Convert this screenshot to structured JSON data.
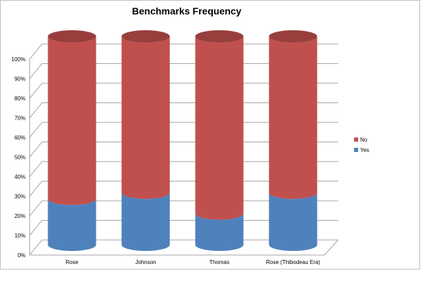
{
  "chart_data": {
    "type": "bar",
    "subtype": "stacked-100-percent-cylinder-3d",
    "title": "Benchmarks Frequency",
    "xlabel": "",
    "ylabel": "",
    "categories": [
      "Rose",
      "Johnson",
      "Thomas",
      "Rose (Thibodeau Era)"
    ],
    "y_ticks": [
      "0%",
      "10%",
      "20%",
      "30%",
      "40%",
      "50%",
      "60%",
      "70%",
      "80%",
      "90%",
      "100%"
    ],
    "ylim": [
      0,
      100
    ],
    "series": [
      {
        "name": "Yes",
        "values": [
          22,
          25,
          15,
          25
        ],
        "color": "#4f81bd",
        "color_dark": "#3a6699"
      },
      {
        "name": "No",
        "values": [
          78,
          75,
          85,
          75
        ],
        "color": "#c0504d",
        "color_dark": "#983f3d"
      }
    ],
    "legend": {
      "position": "right",
      "order": [
        "No",
        "Yes"
      ]
    },
    "grid": true,
    "gridline_color": "#868686"
  }
}
